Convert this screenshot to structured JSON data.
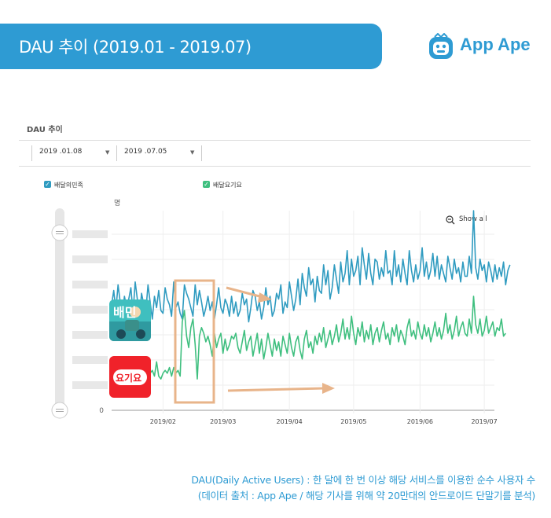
{
  "header": {
    "title": "DAU 추이 (2019.01 - 2019.07)"
  },
  "brand": {
    "name": "App Ape",
    "icon": "ape-face-icon"
  },
  "chart_header": {
    "section_title": "DAU 추이",
    "start_date": "2019 .01.08",
    "end_date": "2019 .07.05",
    "show_all": "Show all"
  },
  "colors": {
    "accent": "#2e9bd3",
    "baemin": "#2f9bc0",
    "yogiyo": "#3fbf7f",
    "highlight": "#e8b48a"
  },
  "app_icons": [
    {
      "name": "baemin-app-icon",
      "label": "배민",
      "color": "#3fbfbf"
    },
    {
      "name": "yogiyo-app-icon",
      "label": "요기요",
      "color": "#f0222a"
    }
  ],
  "chart_data": {
    "type": "line",
    "ylabel": "명",
    "ytick_labels": [
      "0"
    ],
    "x_ticks": [
      "2019/02",
      "2019/03",
      "2019/04",
      "2019/05",
      "2019/06",
      "2019/07"
    ],
    "x_tick_dates": [
      "2019-02-01",
      "2019-03-01",
      "2019-04-01",
      "2019-05-01",
      "2019-06-01",
      "2019-07-01"
    ],
    "x_range": [
      "2019-01-08",
      "2019-07-05"
    ],
    "y_relative_range": [
      0,
      7
    ],
    "grid": true,
    "legend_position": "top",
    "series": [
      {
        "name": "배달의민족",
        "color": "#2f9bc0",
        "x_start": "2019-01-08",
        "values": [
          3.7,
          4.2,
          3.5,
          4.4,
          3.8,
          3.3,
          4.0,
          3.6,
          3.9,
          4.3,
          3.4,
          4.5,
          3.9,
          3.3,
          4.1,
          3.7,
          3.5,
          4.4,
          3.8,
          3.2,
          4.0,
          3.6,
          4.2,
          3.5,
          3.4,
          4.3,
          3.9,
          3.7,
          3.3,
          4.5,
          3.6,
          3.8,
          3.4,
          3.2,
          4.4,
          4.1,
          3.9,
          3.6,
          3.3,
          4.4,
          3.7,
          4.2,
          3.8,
          3.3,
          3.6,
          4.0,
          3.5,
          3.8,
          3.2,
          3.7,
          4.3,
          3.6,
          3.4,
          3.9,
          3.7,
          3.3,
          4.0,
          3.4,
          3.8,
          3.3,
          3.5,
          4.1,
          3.7,
          3.9,
          3.1,
          3.6,
          4.2,
          4.0,
          3.5,
          3.8,
          3.2,
          3.6,
          4.3,
          3.7,
          4.0,
          3.3,
          3.5,
          4.1,
          3.9,
          4.4,
          3.4,
          3.8,
          3.6,
          4.5,
          4.0,
          3.5,
          3.9,
          4.6,
          3.7,
          4.8,
          4.3,
          4.0,
          5.0,
          4.4,
          4.6,
          3.8,
          4.7,
          4.2,
          4.1,
          5.1,
          4.4,
          4.9,
          3.9,
          4.3,
          5.1,
          4.6,
          4.1,
          5.2,
          4.5,
          4.8,
          5.6,
          4.4,
          5.3,
          4.7,
          4.9,
          5.4,
          4.4,
          5.7,
          5.1,
          4.6,
          5.5,
          4.8,
          4.4,
          5.3,
          5.2,
          4.6,
          5.0,
          4.7,
          5.6,
          4.8,
          4.9,
          4.4,
          5.6,
          4.7,
          5.1,
          4.5,
          5.3,
          4.8,
          4.4,
          5.6,
          4.9,
          4.5,
          5.1,
          4.6,
          4.9,
          5.7,
          4.7,
          5.2,
          4.6,
          4.9,
          5.5,
          4.7,
          5.4,
          4.6,
          5.1,
          4.8,
          4.5,
          5.4,
          5.0,
          4.6,
          5.3,
          4.8,
          5.0,
          4.5,
          5.2,
          4.7,
          4.7,
          5.4,
          4.8,
          7.0,
          5.0,
          4.6,
          5.3,
          4.9,
          5.1,
          4.5,
          5.2,
          4.9,
          4.5,
          5.1,
          4.6,
          5.0,
          4.7,
          5.2,
          4.4,
          4.9,
          5.1
        ]
      },
      {
        "name": "배달요기요",
        "color": "#3fbf7f",
        "x_start": "2019-01-08",
        "values": [
          1.7,
          1.5,
          1.3,
          1.5,
          1.7,
          1.4,
          1.2,
          1.2,
          1.3,
          1.4,
          1.2,
          1.3,
          1.4,
          1.6,
          1.2,
          1.3,
          1.4,
          1.5,
          1.3,
          1.4,
          1.2,
          1.7,
          1.2,
          1.1,
          1.3,
          1.4,
          1.3,
          1.5,
          1.2,
          1.5,
          1.3,
          1.4,
          1.2,
          3.1,
          3.5,
          2.6,
          2.2,
          2.9,
          3.2,
          2.3,
          1.1,
          2.6,
          2.9,
          2.7,
          2.4,
          2.6,
          2.3,
          1.9,
          2.7,
          2.2,
          2.5,
          2.7,
          2.0,
          2.5,
          2.1,
          2.3,
          2.6,
          2.5,
          2.7,
          2.2,
          2.0,
          2.4,
          2.8,
          2.1,
          2.4,
          2.6,
          1.9,
          2.3,
          2.7,
          2.0,
          2.5,
          1.8,
          2.2,
          2.7,
          2.3,
          1.9,
          2.5,
          2.1,
          2.4,
          1.9,
          2.6,
          2.3,
          2.0,
          2.7,
          2.2,
          1.9,
          2.4,
          2.6,
          2.1,
          1.8,
          2.5,
          2.8,
          2.2,
          2.4,
          2.0,
          2.6,
          2.3,
          2.7,
          2.4,
          2.9,
          2.2,
          2.5,
          2.8,
          2.3,
          2.6,
          3.0,
          2.4,
          2.7,
          3.2,
          2.5,
          2.9,
          2.5,
          3.3,
          2.7,
          2.3,
          2.9,
          2.6,
          3.1,
          2.4,
          2.8,
          2.5,
          3.0,
          2.3,
          2.7,
          2.9,
          2.4,
          2.8,
          3.1,
          2.5,
          2.7,
          2.3,
          2.9,
          2.6,
          3.0,
          2.4,
          2.8,
          2.6,
          2.3,
          2.9,
          3.2,
          2.6,
          2.8,
          2.5,
          3.1,
          2.7,
          2.5,
          3.0,
          2.6,
          2.9,
          2.4,
          2.7,
          3.1,
          2.6,
          2.9,
          2.5,
          2.8,
          3.4,
          2.7,
          3.0,
          2.5,
          2.8,
          3.3,
          2.6,
          2.9,
          3.1,
          2.7,
          2.6,
          3.2,
          2.7,
          4.0,
          3.0,
          2.7,
          3.2,
          2.6,
          2.8,
          3.3,
          2.7,
          2.9,
          3.1,
          2.6,
          2.9,
          2.8,
          3.2,
          2.6,
          2.7
        ]
      }
    ]
  },
  "footer": {
    "line1": "DAU(Daily Active Users) : 한 달에 한 번 이상 해당 서비스를 이용한 순수 사용자 수",
    "line2": "(데이터 출처 : App Ape / 해당 기사를 위해 약 20만대의 안드로이드 단말기를 분석)"
  }
}
